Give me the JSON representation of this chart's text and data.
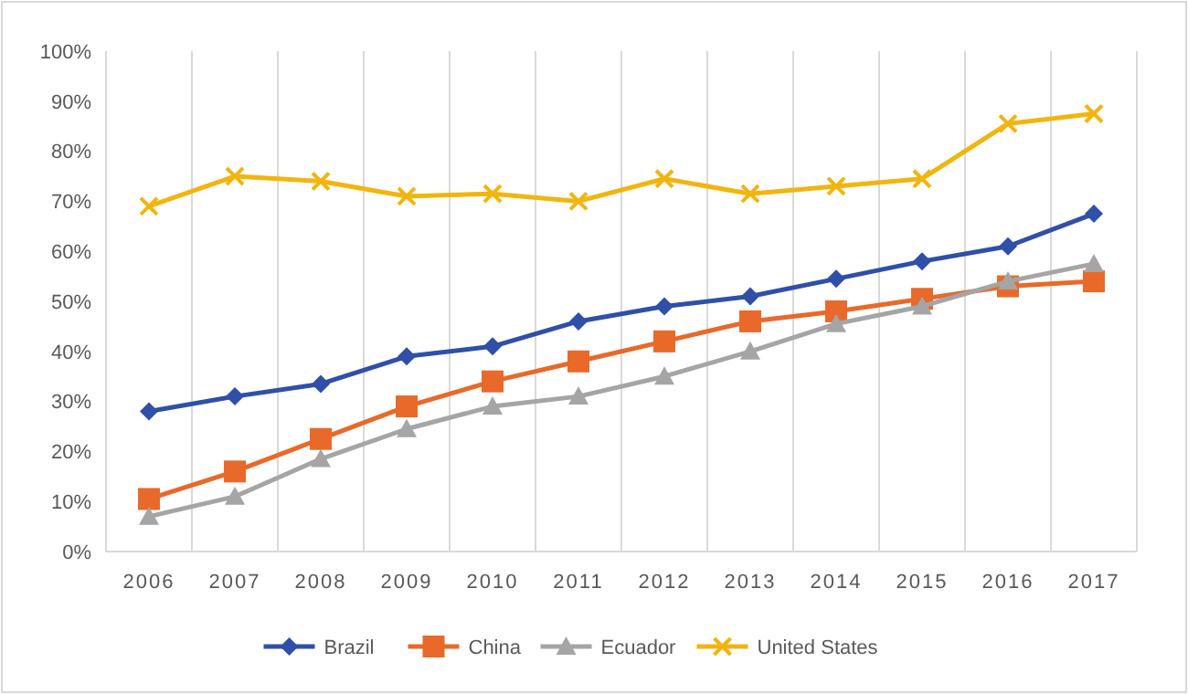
{
  "chart_data": {
    "type": "line",
    "categories": [
      "2006",
      "2007",
      "2008",
      "2009",
      "2010",
      "2011",
      "2012",
      "2013",
      "2014",
      "2015",
      "2016",
      "2017"
    ],
    "series": [
      {
        "name": "Brazil",
        "color": "#2f4fa8",
        "marker": "diamond",
        "values": [
          28,
          31,
          33.5,
          39,
          41,
          46,
          49,
          51,
          54.5,
          58,
          61,
          67.5
        ]
      },
      {
        "name": "China",
        "color": "#e8692a",
        "marker": "square",
        "values": [
          10.5,
          16,
          22.5,
          29,
          34,
          38,
          42,
          46,
          48,
          50.5,
          53,
          54
        ]
      },
      {
        "name": "Ecuador",
        "color": "#a5a5a5",
        "marker": "triangle",
        "values": [
          7,
          11,
          18.5,
          24.5,
          29,
          31,
          35,
          40,
          45.5,
          49,
          54,
          57.5
        ]
      },
      {
        "name": "United States",
        "color": "#f2b50f",
        "marker": "cross",
        "values": [
          69,
          75,
          74,
          71,
          71.5,
          70,
          74.5,
          71.5,
          73,
          74.5,
          85.5,
          87.5
        ]
      }
    ],
    "ylim": [
      0,
      100
    ],
    "yticks": [
      {
        "value": 0,
        "label": "0%"
      },
      {
        "value": 10,
        "label": "10%"
      },
      {
        "value": 20,
        "label": "20%"
      },
      {
        "value": 30,
        "label": "30%"
      },
      {
        "value": 40,
        "label": "40%"
      },
      {
        "value": 50,
        "label": "50%"
      },
      {
        "value": 60,
        "label": "60%"
      },
      {
        "value": 70,
        "label": "70%"
      },
      {
        "value": 80,
        "label": "80%"
      },
      {
        "value": 90,
        "label": "90%"
      },
      {
        "value": 100,
        "label": "100%"
      }
    ],
    "grid": "x",
    "legend": "bottom",
    "line_style": "solid"
  }
}
